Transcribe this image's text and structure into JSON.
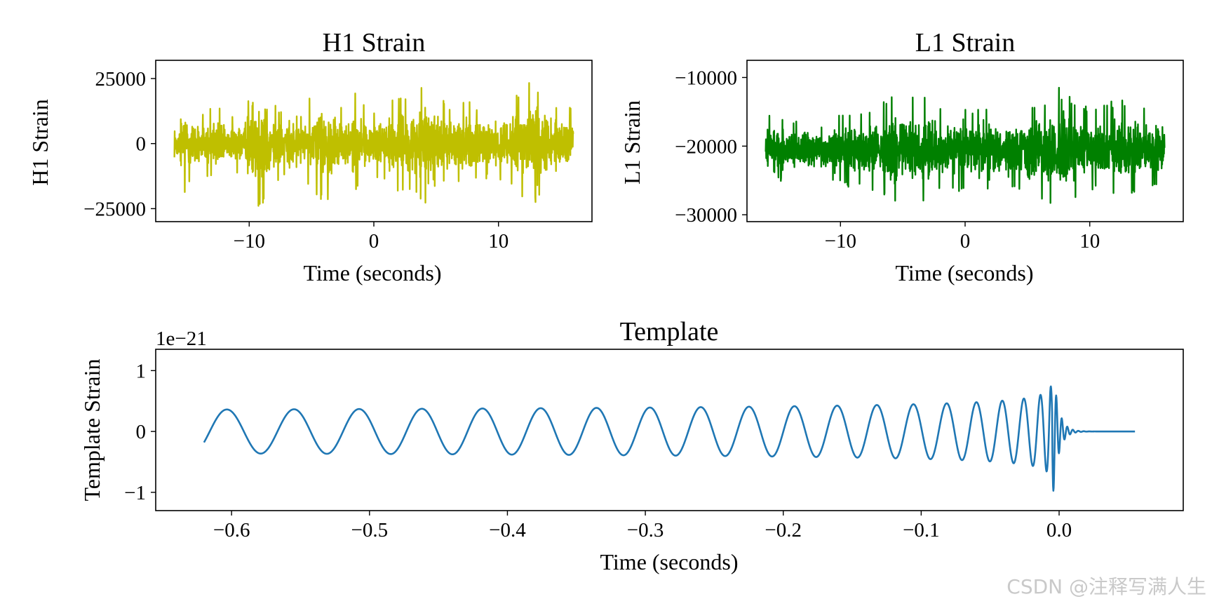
{
  "chart_data": [
    {
      "id": "h1",
      "type": "line",
      "title": "H1 Strain",
      "xlabel": "Time (seconds)",
      "ylabel": "H1 Strain",
      "xlim": [
        -17.5,
        17.5
      ],
      "ylim": [
        -30000,
        32000
      ],
      "xticks": [
        -10,
        0,
        10
      ],
      "xtick_labels": [
        "−10",
        "0",
        "10"
      ],
      "yticks": [
        25000,
        0,
        -25000
      ],
      "ytick_labels": [
        "25000",
        "0",
        "−25000"
      ],
      "series": [
        {
          "color": "#bfbf00",
          "x_range": [
            -16,
            16
          ],
          "y_center": 0,
          "envelope": [
            [
              -16,
              10000
            ],
            [
              -15.2,
              21000
            ],
            [
              -14.5,
              13000
            ],
            [
              -13.5,
              12000
            ],
            [
              -12.5,
              16000
            ],
            [
              -11.5,
              11000
            ],
            [
              -10.5,
              13000
            ],
            [
              -9.8,
              22000
            ],
            [
              -9.2,
              26000
            ],
            [
              -8.5,
              20000
            ],
            [
              -7.5,
              13000
            ],
            [
              -6.5,
              12000
            ],
            [
              -5.5,
              16000
            ],
            [
              -4.5,
              20000
            ],
            [
              -3.5,
              26000
            ],
            [
              -2.5,
              14000
            ],
            [
              -1.5,
              20000
            ],
            [
              -0.5,
              14000
            ],
            [
              0.5,
              13000
            ],
            [
              1.5,
              17000
            ],
            [
              2.5,
              20000
            ],
            [
              3.5,
              20000
            ],
            [
              4.2,
              25000
            ],
            [
              4.8,
              29000
            ],
            [
              5.5,
              17000
            ],
            [
              6.5,
              14000
            ],
            [
              7.5,
              18000
            ],
            [
              8.5,
              13000
            ],
            [
              9.5,
              14000
            ],
            [
              10.5,
              15000
            ],
            [
              11.5,
              20000
            ],
            [
              12.5,
              24000
            ],
            [
              13.5,
              22000
            ],
            [
              14.5,
              15000
            ],
            [
              15.5,
              16000
            ],
            [
              16,
              12000
            ]
          ]
        }
      ]
    },
    {
      "id": "l1",
      "type": "line",
      "title": "L1 Strain",
      "xlabel": "Time (seconds)",
      "ylabel": "L1 Strain",
      "xlim": [
        -17.5,
        17.5
      ],
      "ylim": [
        -31000,
        -7500
      ],
      "xticks": [
        -10,
        0,
        10
      ],
      "xtick_labels": [
        "−10",
        "0",
        "10"
      ],
      "yticks": [
        -10000,
        -20000,
        -30000
      ],
      "ytick_labels": [
        "−10000",
        "−20000",
        "−30000"
      ],
      "series": [
        {
          "color": "#008000",
          "x_range": [
            -16,
            16
          ],
          "y_center": -20500,
          "envelope": [
            [
              -16,
              5500
            ],
            [
              -15.5,
              5000
            ],
            [
              -14.5,
              4500
            ],
            [
              -13.5,
              4500
            ],
            [
              -12.5,
              5000
            ],
            [
              -11.5,
              5000
            ],
            [
              -10.5,
              5000
            ],
            [
              -9.5,
              5500
            ],
            [
              -8.5,
              5500
            ],
            [
              -7.5,
              6000
            ],
            [
              -6.5,
              7000
            ],
            [
              -5.5,
              8500
            ],
            [
              -4.5,
              9000
            ],
            [
              -3.5,
              8000
            ],
            [
              -2.5,
              6500
            ],
            [
              -1.5,
              6500
            ],
            [
              -0.5,
              6500
            ],
            [
              0.5,
              6000
            ],
            [
              1.5,
              6500
            ],
            [
              2.5,
              6000
            ],
            [
              3.5,
              6000
            ],
            [
              4.5,
              6500
            ],
            [
              5.5,
              7000
            ],
            [
              6.5,
              7500
            ],
            [
              7.3,
              8500
            ],
            [
              7.8,
              12000
            ],
            [
              8.5,
              7500
            ],
            [
              9.5,
              6500
            ],
            [
              10.5,
              6000
            ],
            [
              11.5,
              7000
            ],
            [
              12.5,
              7500
            ],
            [
              13.5,
              6500
            ],
            [
              14.5,
              6000
            ],
            [
              15.5,
              5000
            ],
            [
              16,
              4500
            ]
          ]
        }
      ]
    },
    {
      "id": "template",
      "type": "line",
      "title": "Template",
      "xlabel": "Time (seconds)",
      "ylabel": "Template Strain",
      "offset_label": "1e−21",
      "xlim": [
        -0.655,
        0.09
      ],
      "ylim": [
        -1.3,
        1.35
      ],
      "xticks": [
        -0.6,
        -0.5,
        -0.4,
        -0.3,
        -0.2,
        -0.1,
        0.0
      ],
      "xtick_labels": [
        "−0.6",
        "−0.5",
        "−0.4",
        "−0.3",
        "−0.2",
        "−0.1",
        "0.0"
      ],
      "yticks": [
        1,
        0,
        -1
      ],
      "ytick_labels": [
        "1",
        "0",
        "−1"
      ],
      "series": [
        {
          "color": "#1f77b4",
          "x_range": [
            -0.62,
            0.055
          ],
          "chirp": {
            "t_merge": -0.005,
            "amp_start": 0.36,
            "amp_peak": 1.22,
            "initial_period": 0.05,
            "ringdown_decay": 0.004,
            "ringdown_freq": 250
          }
        }
      ]
    }
  ],
  "watermark": "CSDN @注释写满人生"
}
